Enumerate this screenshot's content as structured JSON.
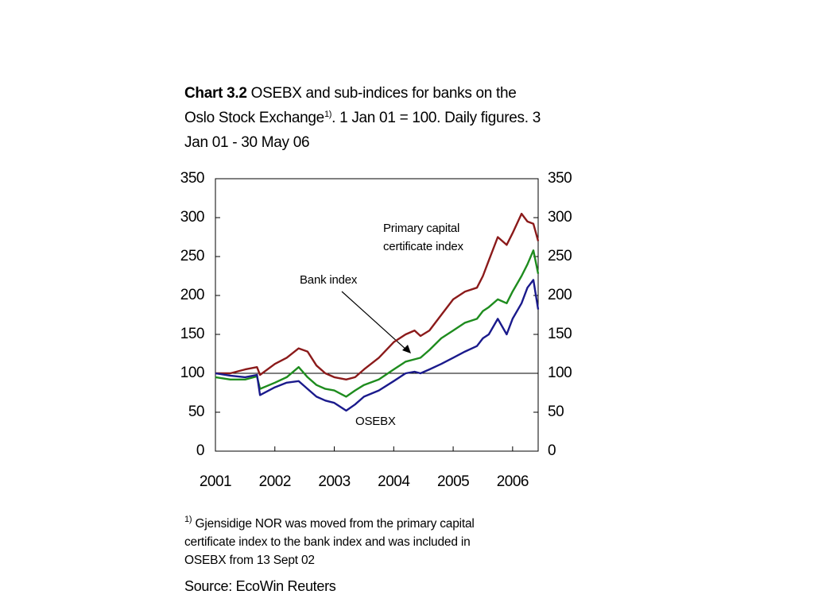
{
  "chart_data": {
    "type": "line",
    "title_bold": "Chart 3.2",
    "title": "OSEBX and sub-indices for banks on the Oslo Stock Exchange",
    "title_sup": "1)",
    "title_rest": ". 1 Jan 01 = 100. Daily figures. 3 Jan 01 - 30 May 06",
    "x": [
      2001.0,
      2001.25,
      2001.5,
      2001.7,
      2001.75,
      2002.0,
      2002.2,
      2002.4,
      2002.55,
      2002.7,
      2002.85,
      2003.0,
      2003.2,
      2003.35,
      2003.5,
      2003.75,
      2004.0,
      2004.2,
      2004.35,
      2004.45,
      2004.6,
      2004.8,
      2005.0,
      2005.2,
      2005.4,
      2005.5,
      2005.6,
      2005.75,
      2005.9,
      2006.0,
      2006.15,
      2006.25,
      2006.35,
      2006.43
    ],
    "series": [
      {
        "name": "Primary capital certificate index",
        "color": "#8b1a1a",
        "values": [
          100,
          100,
          105,
          108,
          98,
          112,
          120,
          132,
          128,
          110,
          100,
          95,
          92,
          95,
          105,
          120,
          140,
          150,
          155,
          148,
          155,
          175,
          195,
          205,
          210,
          225,
          245,
          275,
          265,
          280,
          305,
          295,
          292,
          270
        ]
      },
      {
        "name": "Bank index",
        "color": "#1e8c1e",
        "values": [
          95,
          92,
          92,
          96,
          80,
          88,
          95,
          108,
          95,
          85,
          80,
          78,
          70,
          78,
          85,
          92,
          105,
          115,
          118,
          120,
          130,
          145,
          155,
          165,
          170,
          180,
          185,
          195,
          190,
          205,
          225,
          240,
          258,
          228
        ]
      },
      {
        "name": "OSEBX",
        "color": "#1a1a8c",
        "values": [
          100,
          97,
          95,
          98,
          72,
          82,
          88,
          90,
          80,
          70,
          65,
          62,
          52,
          60,
          70,
          78,
          90,
          100,
          102,
          100,
          105,
          112,
          120,
          128,
          135,
          145,
          150,
          170,
          150,
          170,
          190,
          210,
          220,
          182
        ]
      }
    ],
    "xlim": [
      2001.0,
      2006.43
    ],
    "xticks": [
      2001,
      2002,
      2003,
      2004,
      2005,
      2006
    ],
    "ylim": [
      0,
      350
    ],
    "yticks": [
      0,
      50,
      100,
      150,
      200,
      250,
      300,
      350
    ],
    "y2lim": [
      0,
      350
    ],
    "y2ticks": [
      0,
      50,
      100,
      150,
      200,
      250,
      300,
      350
    ],
    "reference_line": 100,
    "footnote_sup": "1)",
    "footnote": "Gjensidige NOR was moved from the primary capital certificate index to the bank index and was included in OSEBX from 13 Sept 02",
    "source": "Source: EcoWin Reuters"
  }
}
